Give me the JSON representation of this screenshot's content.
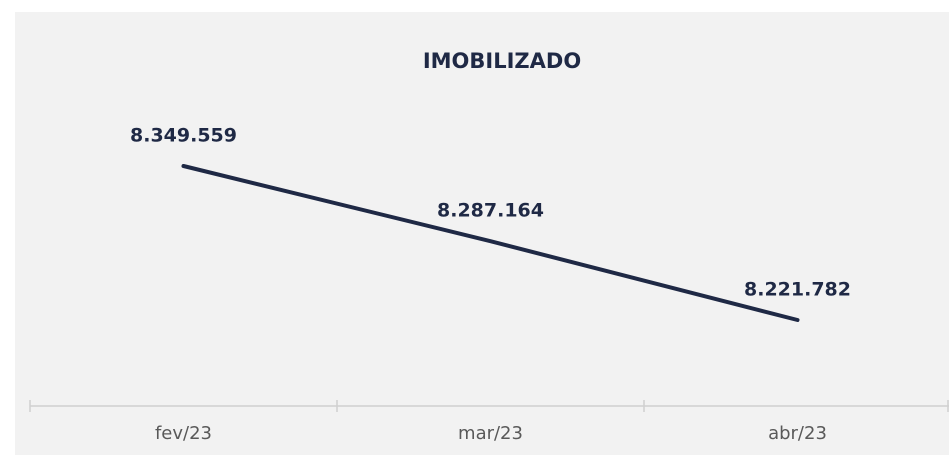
{
  "chart_data": {
    "type": "line",
    "title": "IMOBILIZADO",
    "categories": [
      "fev/23",
      "mar/23",
      "abr/23"
    ],
    "values": [
      8349559,
      8287164,
      8221782
    ],
    "value_labels": [
      "8.349.559",
      "8.287.164",
      "8.221.782"
    ],
    "color": "#1f2945"
  }
}
